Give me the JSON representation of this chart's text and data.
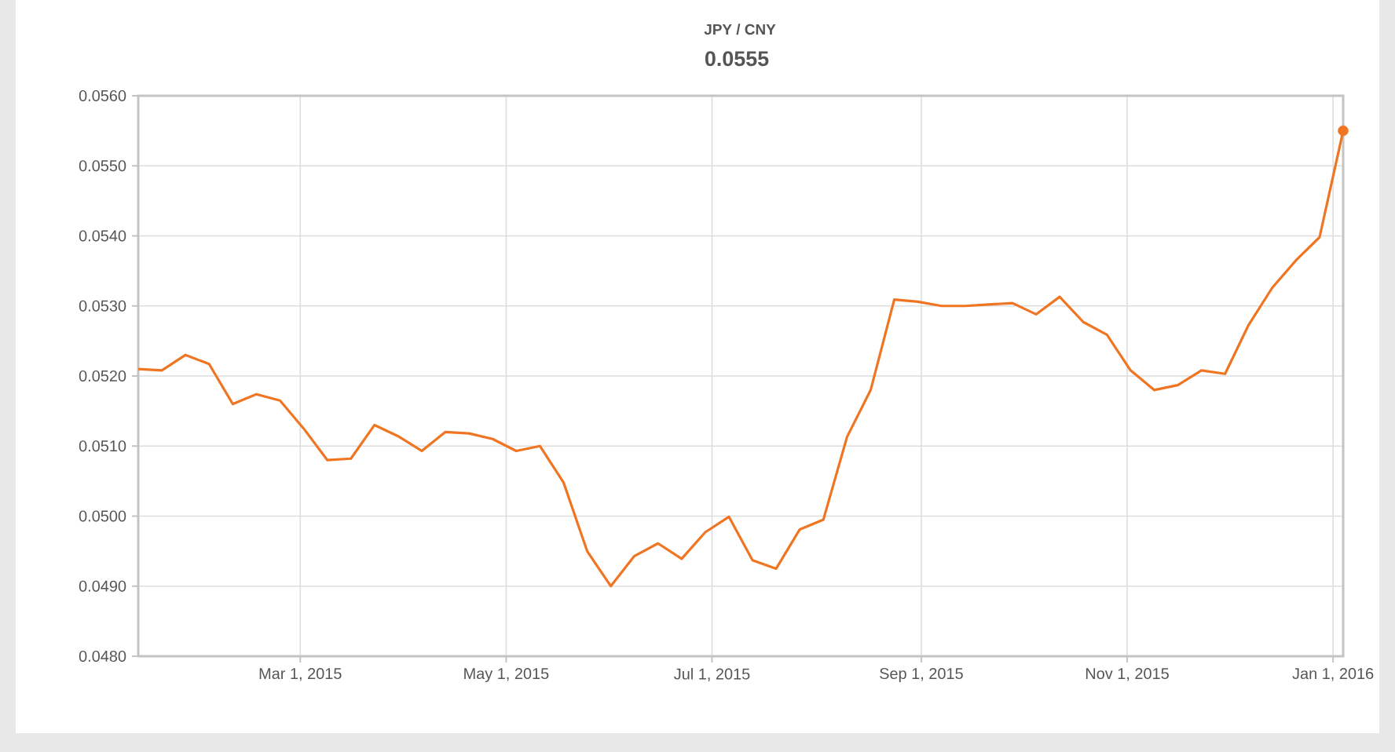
{
  "chart_data": {
    "type": "line",
    "title": "JPY / CNY",
    "annotations": [
      "0.0555"
    ],
    "x": [
      "2015-01-12",
      "2015-01-19",
      "2015-01-26",
      "2015-02-02",
      "2015-02-09",
      "2015-02-16",
      "2015-02-23",
      "2015-03-02",
      "2015-03-09",
      "2015-03-16",
      "2015-03-23",
      "2015-03-30",
      "2015-04-06",
      "2015-04-13",
      "2015-04-20",
      "2015-04-27",
      "2015-05-04",
      "2015-05-11",
      "2015-05-18",
      "2015-05-25",
      "2015-06-01",
      "2015-06-08",
      "2015-06-15",
      "2015-06-22",
      "2015-06-29",
      "2015-07-06",
      "2015-07-13",
      "2015-07-20",
      "2015-07-27",
      "2015-08-03",
      "2015-08-10",
      "2015-08-17",
      "2015-08-24",
      "2015-08-31",
      "2015-09-07",
      "2015-09-14",
      "2015-09-21",
      "2015-09-28",
      "2015-10-05",
      "2015-10-12",
      "2015-10-19",
      "2015-10-26",
      "2015-11-02",
      "2015-11-09",
      "2015-11-16",
      "2015-11-23",
      "2015-11-30",
      "2015-12-07",
      "2015-12-14",
      "2015-12-21",
      "2015-12-28",
      "2016-01-04"
    ],
    "series": [
      {
        "color": "#f07522",
        "values": [
          0.0521,
          0.05208,
          0.0523,
          0.05217,
          0.0516,
          0.05174,
          0.05165,
          0.05125,
          0.0508,
          0.05082,
          0.0513,
          0.05114,
          0.05093,
          0.0512,
          0.05118,
          0.0511,
          0.05093,
          0.051,
          0.05048,
          0.0495,
          0.049,
          0.04943,
          0.04961,
          0.04939,
          0.04977,
          0.04999,
          0.04937,
          0.04925,
          0.04981,
          0.04995,
          0.05113,
          0.0518,
          0.05309,
          0.05306,
          0.053,
          0.053,
          0.05302,
          0.05304,
          0.05288,
          0.05313,
          0.05277,
          0.05259,
          0.05208,
          0.0518,
          0.05187,
          0.05208,
          0.05203,
          0.05273,
          0.05326,
          0.05365,
          0.05398,
          0.0555
        ]
      }
    ],
    "xlim": [
      "2015-01-12",
      "2016-01-04"
    ],
    "xticks": [
      {
        "value": "2015-03-01",
        "label": "Mar 1, 2015"
      },
      {
        "value": "2015-05-01",
        "label": "May 1, 2015"
      },
      {
        "value": "2015-07-01",
        "label": "Jul 1, 2015"
      },
      {
        "value": "2015-09-01",
        "label": "Sep 1, 2015"
      },
      {
        "value": "2015-11-01",
        "label": "Nov 1, 2015"
      },
      {
        "value": "2016-01-01",
        "label": "Jan 1, 2016"
      }
    ],
    "ylim": [
      0.048,
      0.056
    ],
    "yticks": [
      {
        "value": 0.048,
        "label": "0.0480"
      },
      {
        "value": 0.049,
        "label": "0.0490"
      },
      {
        "value": 0.05,
        "label": "0.0500"
      },
      {
        "value": 0.051,
        "label": "0.0510"
      },
      {
        "value": 0.052,
        "label": "0.0520"
      },
      {
        "value": 0.053,
        "label": "0.0530"
      },
      {
        "value": 0.054,
        "label": "0.0540"
      },
      {
        "value": 0.055,
        "label": "0.0550"
      },
      {
        "value": 0.056,
        "label": "0.0560"
      }
    ],
    "grid": true,
    "marker": "none",
    "line_style": "solid",
    "legend": false
  }
}
